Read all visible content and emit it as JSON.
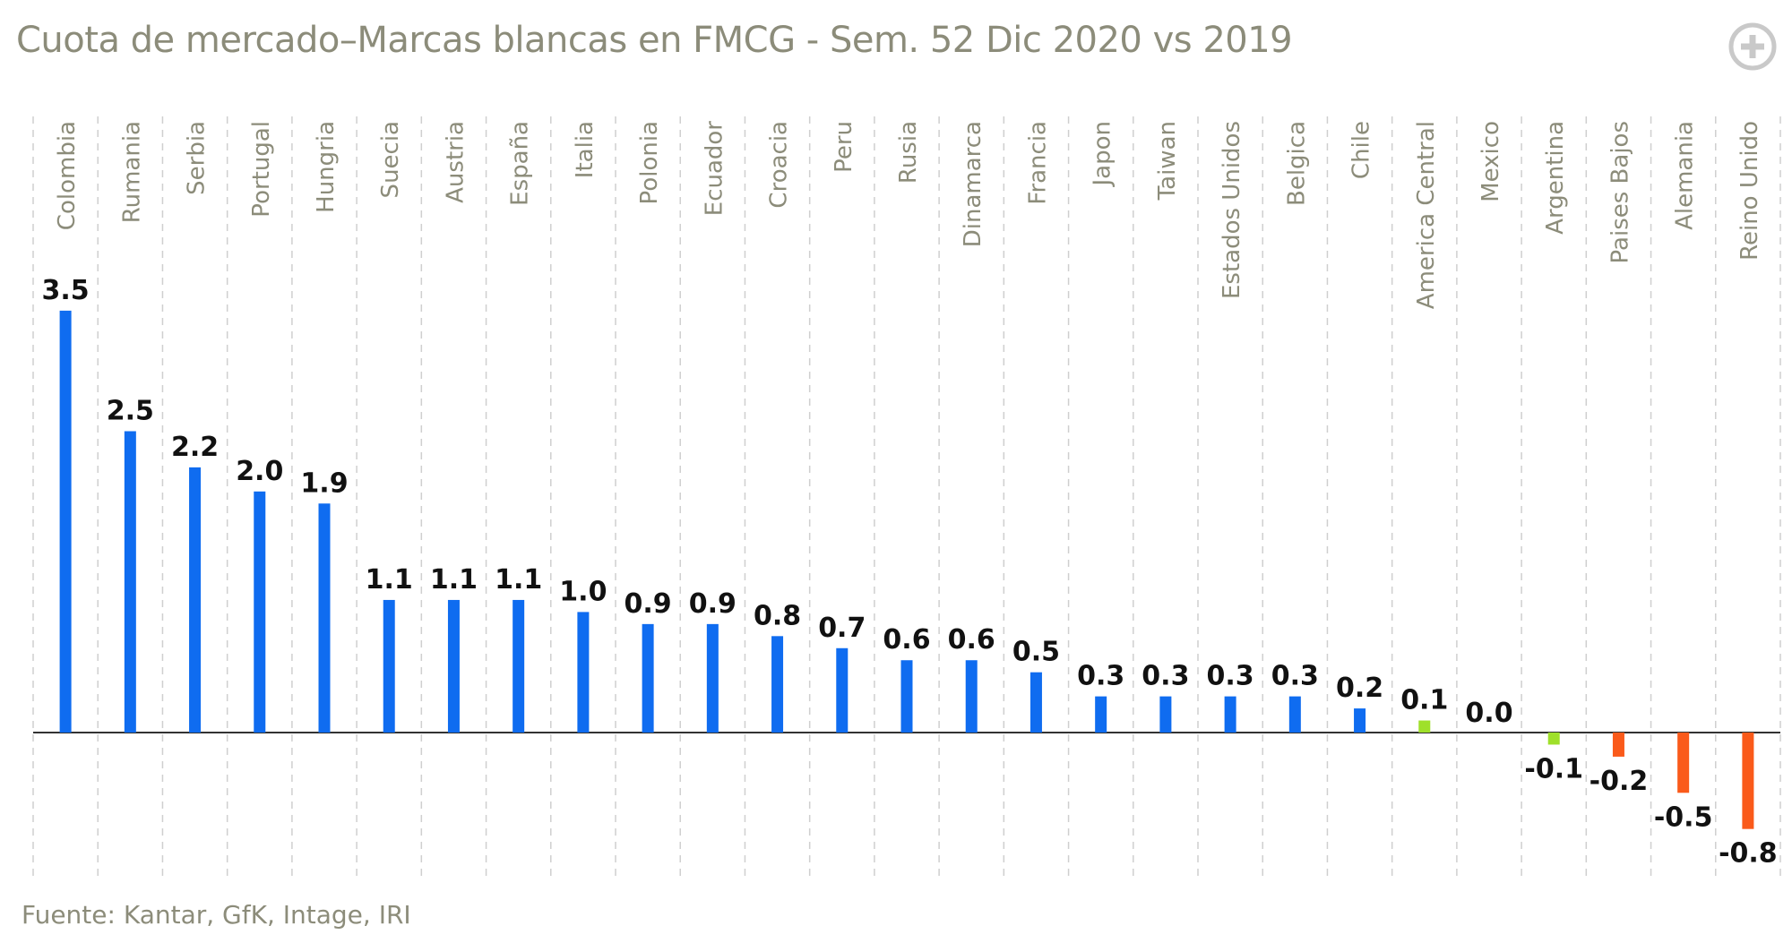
{
  "title": "Cuota de mercado–Marcas blancas en FMCG - Sem. 52 Dic 2020 vs 2019",
  "source": "Fuente: Kantar, GfK, Intage, IRI",
  "expand_icon": "plus-circle-icon",
  "colors": {
    "positive": "#0f6cf0",
    "neutral": "#9fe02a",
    "negative": "#fa5a1a",
    "axis": "#333333",
    "grid": "#cfcfcf",
    "label": "#8c8c7a"
  },
  "chart_data": {
    "type": "bar",
    "categories": [
      "Colombia",
      "Rumania",
      "Serbia",
      "Portugal",
      "Hungria",
      "Suecia",
      "Austria",
      "España",
      "Italia",
      "Polonia",
      "Ecuador",
      "Croacia",
      "Peru",
      "Rusia",
      "Dinamarca",
      "Francia",
      "Japon",
      "Taiwan",
      "Estados Unidos",
      "Belgica",
      "Chile",
      "America Central",
      "Mexico",
      "Argentina",
      "Paises Bajos",
      "Alemania",
      "Reino Unido"
    ],
    "values": [
      3.5,
      2.5,
      2.2,
      2.0,
      1.9,
      1.1,
      1.1,
      1.1,
      1.0,
      0.9,
      0.9,
      0.8,
      0.7,
      0.6,
      0.6,
      0.5,
      0.3,
      0.3,
      0.3,
      0.3,
      0.2,
      0.1,
      0.0,
      -0.1,
      -0.2,
      -0.5,
      -0.8
    ],
    "value_labels": [
      "3.5",
      "2.5",
      "2.2",
      "2.0",
      "1.9",
      "1.1",
      "1.1",
      "1.1",
      "1.0",
      "0.9",
      "0.9",
      "0.8",
      "0.7",
      "0.6",
      "0.6",
      "0.5",
      "0.3",
      "0.3",
      "0.3",
      "0.3",
      "0.2",
      "0.1",
      "0.0",
      "-0.1",
      "-0.2",
      "-0.5",
      "-0.8"
    ],
    "bar_colors": [
      "positive",
      "positive",
      "positive",
      "positive",
      "positive",
      "positive",
      "positive",
      "positive",
      "positive",
      "positive",
      "positive",
      "positive",
      "positive",
      "positive",
      "positive",
      "positive",
      "positive",
      "positive",
      "positive",
      "positive",
      "positive",
      "neutral",
      "neutral",
      "neutral",
      "negative",
      "negative",
      "negative"
    ],
    "title": "Cuota de mercado–Marcas blancas en FMCG - Sem. 52 Dic 2020 vs 2019",
    "xlabel": "",
    "ylabel": "",
    "ylim": [
      -1.0,
      3.5
    ],
    "grid": "vertical-dashed",
    "legend": "none"
  }
}
